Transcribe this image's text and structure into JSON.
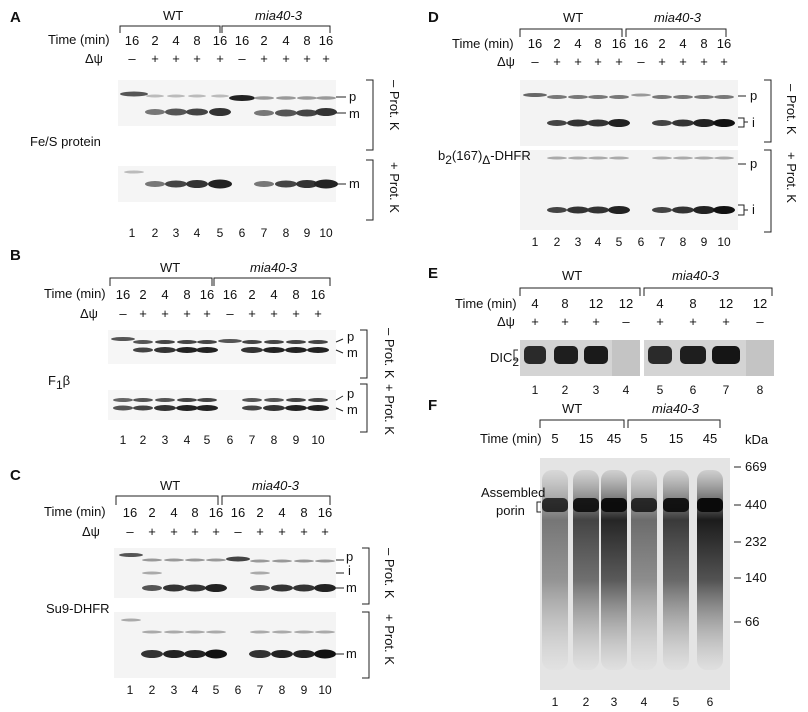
{
  "panels": [
    {
      "id": "A",
      "letter": "A",
      "x": 0,
      "y": 0,
      "groups": [
        "WT",
        "mia40-3"
      ],
      "row1_label": "Time (min)",
      "row1_values": [
        "16",
        "2",
        "4",
        "8",
        "16",
        "16",
        "2",
        "4",
        "8",
        "16"
      ],
      "row2_label": "Δψ",
      "row2_values": [
        "–",
        "+",
        "+",
        "+",
        "+",
        "–",
        "+",
        "+",
        "+",
        "+"
      ],
      "protein": "Fe/S protein",
      "treatments": [
        "– Prot. K",
        "+ Prot. K"
      ],
      "band_labels_upper": [
        "p",
        "m"
      ],
      "band_labels_lower": [
        "m"
      ],
      "lanes": [
        "1",
        "2",
        "3",
        "4",
        "5",
        "6",
        "7",
        "8",
        "9",
        "10"
      ]
    },
    {
      "id": "B",
      "letter": "B",
      "groups": [
        "WT",
        "mia40-3"
      ],
      "row1_label": "Time (min)",
      "row1_values": [
        "16",
        "2",
        "4",
        "8",
        "16",
        "16",
        "2",
        "4",
        "8",
        "16"
      ],
      "row2_label": "Δψ",
      "row2_values": [
        "–",
        "+",
        "+",
        "+",
        "+",
        "–",
        "+",
        "+",
        "+",
        "+"
      ],
      "protein": "F",
      "protein_sub": "1",
      "protein_suffix": "β",
      "treatments": [
        "– Prot. K",
        "+ Prot. K"
      ],
      "band_labels_upper": [
        "p",
        "m"
      ],
      "band_labels_lower": [
        "p",
        "m"
      ],
      "lanes": [
        "1",
        "2",
        "3",
        "4",
        "5",
        "6",
        "7",
        "8",
        "9",
        "10"
      ]
    },
    {
      "id": "C",
      "letter": "C",
      "groups": [
        "WT",
        "mia40-3"
      ],
      "row1_label": "Time (min)",
      "row1_values": [
        "16",
        "2",
        "4",
        "8",
        "16",
        "16",
        "2",
        "4",
        "8",
        "16"
      ],
      "row2_label": "Δψ",
      "row2_values": [
        "–",
        "+",
        "+",
        "+",
        "+",
        "–",
        "+",
        "+",
        "+",
        "+"
      ],
      "protein": "Su9-DHFR",
      "treatments": [
        "– Prot. K",
        "+ Prot. K"
      ],
      "band_labels_upper": [
        "p",
        "i",
        "m"
      ],
      "band_labels_lower": [
        "m"
      ],
      "lanes": [
        "1",
        "2",
        "3",
        "4",
        "5",
        "6",
        "7",
        "8",
        "9",
        "10"
      ]
    },
    {
      "id": "D",
      "letter": "D",
      "groups": [
        "WT",
        "mia40-3"
      ],
      "row1_label": "Time (min)",
      "row1_values": [
        "16",
        "2",
        "4",
        "8",
        "16",
        "16",
        "2",
        "4",
        "8",
        "16"
      ],
      "row2_label": "Δψ",
      "row2_values": [
        "–",
        "+",
        "+",
        "+",
        "+",
        "–",
        "+",
        "+",
        "+",
        "+"
      ],
      "protein_pre": "b",
      "protein_sub": "2",
      "protein_mid": "(167)",
      "protein_sub2": "Δ",
      "protein_post": "-DHFR",
      "treatments": [
        "– Prot. K",
        "+ Prot. K"
      ],
      "band_labels_upper": [
        "p",
        "i"
      ],
      "band_labels_lower": [
        "p",
        "i"
      ],
      "lanes": [
        "1",
        "2",
        "3",
        "4",
        "5",
        "6",
        "7",
        "8",
        "9",
        "10"
      ]
    },
    {
      "id": "E",
      "letter": "E",
      "groups": [
        "WT",
        "mia40-3"
      ],
      "row1_label": "Time (min)",
      "row1_values": [
        "4",
        "8",
        "12",
        "12",
        "4",
        "8",
        "12",
        "12"
      ],
      "row2_label": "Δψ",
      "row2_values": [
        "+",
        "+",
        "+",
        "–",
        "+",
        "+",
        "+",
        "–"
      ],
      "protein": "DIC",
      "protein_sub": "2",
      "lanes": [
        "1",
        "2",
        "3",
        "4",
        "5",
        "6",
        "7",
        "8"
      ]
    },
    {
      "id": "F",
      "letter": "F",
      "groups": [
        "WT",
        "mia40-3"
      ],
      "row1_label": "Time (min)",
      "row1_values": [
        "5",
        "15",
        "45",
        "5",
        "15",
        "45"
      ],
      "protein_line1": "Assembled",
      "protein_line2": "porin",
      "kda_label": "kDa",
      "markers": [
        "669",
        "440",
        "232",
        "140",
        "66"
      ],
      "lanes": [
        "1",
        "2",
        "3",
        "4",
        "5",
        "6"
      ]
    }
  ]
}
